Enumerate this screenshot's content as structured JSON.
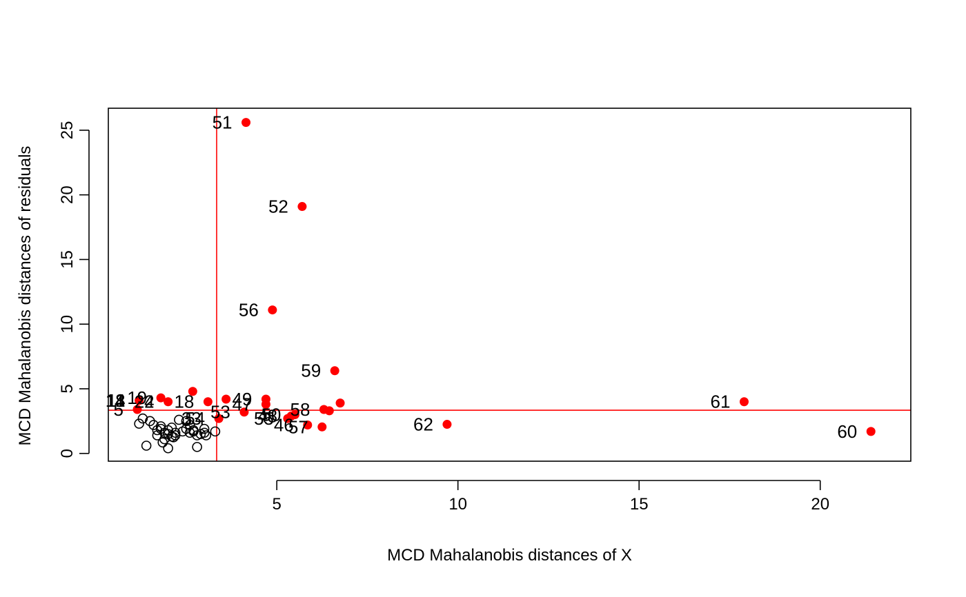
{
  "chart_data": {
    "type": "scatter",
    "title": "",
    "xlabel": "MCD Mahalanobis distances of X",
    "ylabel": "MCD Mahalanobis distances of residuals",
    "xlim": [
      0.35,
      22.5
    ],
    "ylim": [
      -0.6,
      26.7
    ],
    "xticks": [
      5,
      10,
      15,
      20
    ],
    "yticks": [
      0,
      5,
      10,
      15,
      20,
      25
    ],
    "grid": false,
    "colors": {
      "outlier": "#ff0000",
      "regular": "#000000",
      "cutoff": "#ff0000"
    },
    "cutoffs": {
      "x": 3.34,
      "y": 3.34
    },
    "regular_points": [
      [
        1.2,
        2.3
      ],
      [
        1.3,
        2.7
      ],
      [
        1.4,
        0.6
      ],
      [
        1.5,
        2.5
      ],
      [
        1.6,
        2.2
      ],
      [
        1.7,
        1.8
      ],
      [
        1.7,
        1.4
      ],
      [
        1.8,
        1.9
      ],
      [
        1.8,
        2.1
      ],
      [
        1.9,
        1.6
      ],
      [
        1.9,
        1.1
      ],
      [
        2.0,
        1.5
      ],
      [
        2.0,
        0.4
      ],
      [
        2.0,
        1.8
      ],
      [
        2.1,
        1.3
      ],
      [
        2.1,
        2.0
      ],
      [
        2.2,
        1.6
      ],
      [
        2.2,
        1.4
      ],
      [
        2.3,
        2.6
      ],
      [
        2.4,
        1.7
      ],
      [
        2.5,
        1.9
      ],
      [
        2.5,
        2.5
      ],
      [
        2.6,
        1.6
      ],
      [
        2.6,
        2.2
      ],
      [
        2.7,
        1.8
      ],
      [
        2.7,
        1.7
      ],
      [
        2.8,
        1.4
      ],
      [
        2.8,
        0.5
      ],
      [
        2.9,
        1.5
      ],
      [
        3.0,
        1.9
      ],
      [
        3.0,
        1.6
      ],
      [
        3.05,
        1.4
      ],
      [
        3.3,
        1.7
      ],
      [
        1.85,
        0.85
      ],
      [
        2.15,
        1.25
      ]
    ],
    "outlier_points": [
      [
        4.15,
        25.6
      ],
      [
        5.7,
        19.1
      ],
      [
        4.88,
        11.1
      ],
      [
        6.6,
        6.4
      ],
      [
        17.9,
        4.0
      ],
      [
        21.4,
        1.7
      ],
      [
        9.7,
        2.25
      ],
      [
        2.68,
        4.8
      ],
      [
        1.8,
        4.3
      ],
      [
        3.1,
        4.0
      ],
      [
        2.0,
        4.0
      ],
      [
        3.6,
        4.2
      ],
      [
        1.2,
        4.1
      ],
      [
        1.15,
        3.4
      ],
      [
        4.7,
        4.2
      ],
      [
        4.7,
        3.8
      ],
      [
        4.1,
        3.2
      ],
      [
        6.75,
        3.9
      ],
      [
        6.3,
        3.4
      ],
      [
        6.45,
        3.3
      ],
      [
        5.4,
        2.9
      ],
      [
        5.5,
        3.0
      ],
      [
        5.3,
        2.7
      ],
      [
        5.85,
        2.2
      ],
      [
        6.25,
        2.05
      ],
      [
        3.4,
        2.7
      ]
    ],
    "labels": [
      {
        "text": "51",
        "x": 4.15,
        "y": 25.6
      },
      {
        "text": "52",
        "x": 5.7,
        "y": 19.1
      },
      {
        "text": "56",
        "x": 4.88,
        "y": 11.1
      },
      {
        "text": "59",
        "x": 6.6,
        "y": 6.4
      },
      {
        "text": "61",
        "x": 17.9,
        "y": 4.0
      },
      {
        "text": "60",
        "x": 21.4,
        "y": 1.7
      },
      {
        "text": "62",
        "x": 9.7,
        "y": 2.25
      },
      {
        "text": "19",
        "x": 1.8,
        "y": 4.3
      },
      {
        "text": "18",
        "x": 3.1,
        "y": 4.0
      },
      {
        "text": "22",
        "x": 2.0,
        "y": 4.0
      },
      {
        "text": "14",
        "x": 1.2,
        "y": 4.1
      },
      {
        "text": "11",
        "x": 1.2,
        "y": 4.1
      },
      {
        "text": "8",
        "x": 1.2,
        "y": 4.1
      },
      {
        "text": "4",
        "x": 2.0,
        "y": 4.0
      },
      {
        "text": "5",
        "x": 1.15,
        "y": 3.4
      },
      {
        "text": "33",
        "x": 3.3,
        "y": 2.7
      },
      {
        "text": "54",
        "x": 3.4,
        "y": 2.7
      },
      {
        "text": "49",
        "x": 4.7,
        "y": 4.2
      },
      {
        "text": "53",
        "x": 4.1,
        "y": 3.2
      },
      {
        "text": "47",
        "x": 4.7,
        "y": 3.8
      },
      {
        "text": "55",
        "x": 5.3,
        "y": 2.7
      },
      {
        "text": "58",
        "x": 6.3,
        "y": 3.4
      },
      {
        "text": "50",
        "x": 5.5,
        "y": 3.0
      },
      {
        "text": "48",
        "x": 5.4,
        "y": 2.9
      },
      {
        "text": "46",
        "x": 5.85,
        "y": 2.2
      },
      {
        "text": "57",
        "x": 6.25,
        "y": 2.05
      }
    ]
  }
}
